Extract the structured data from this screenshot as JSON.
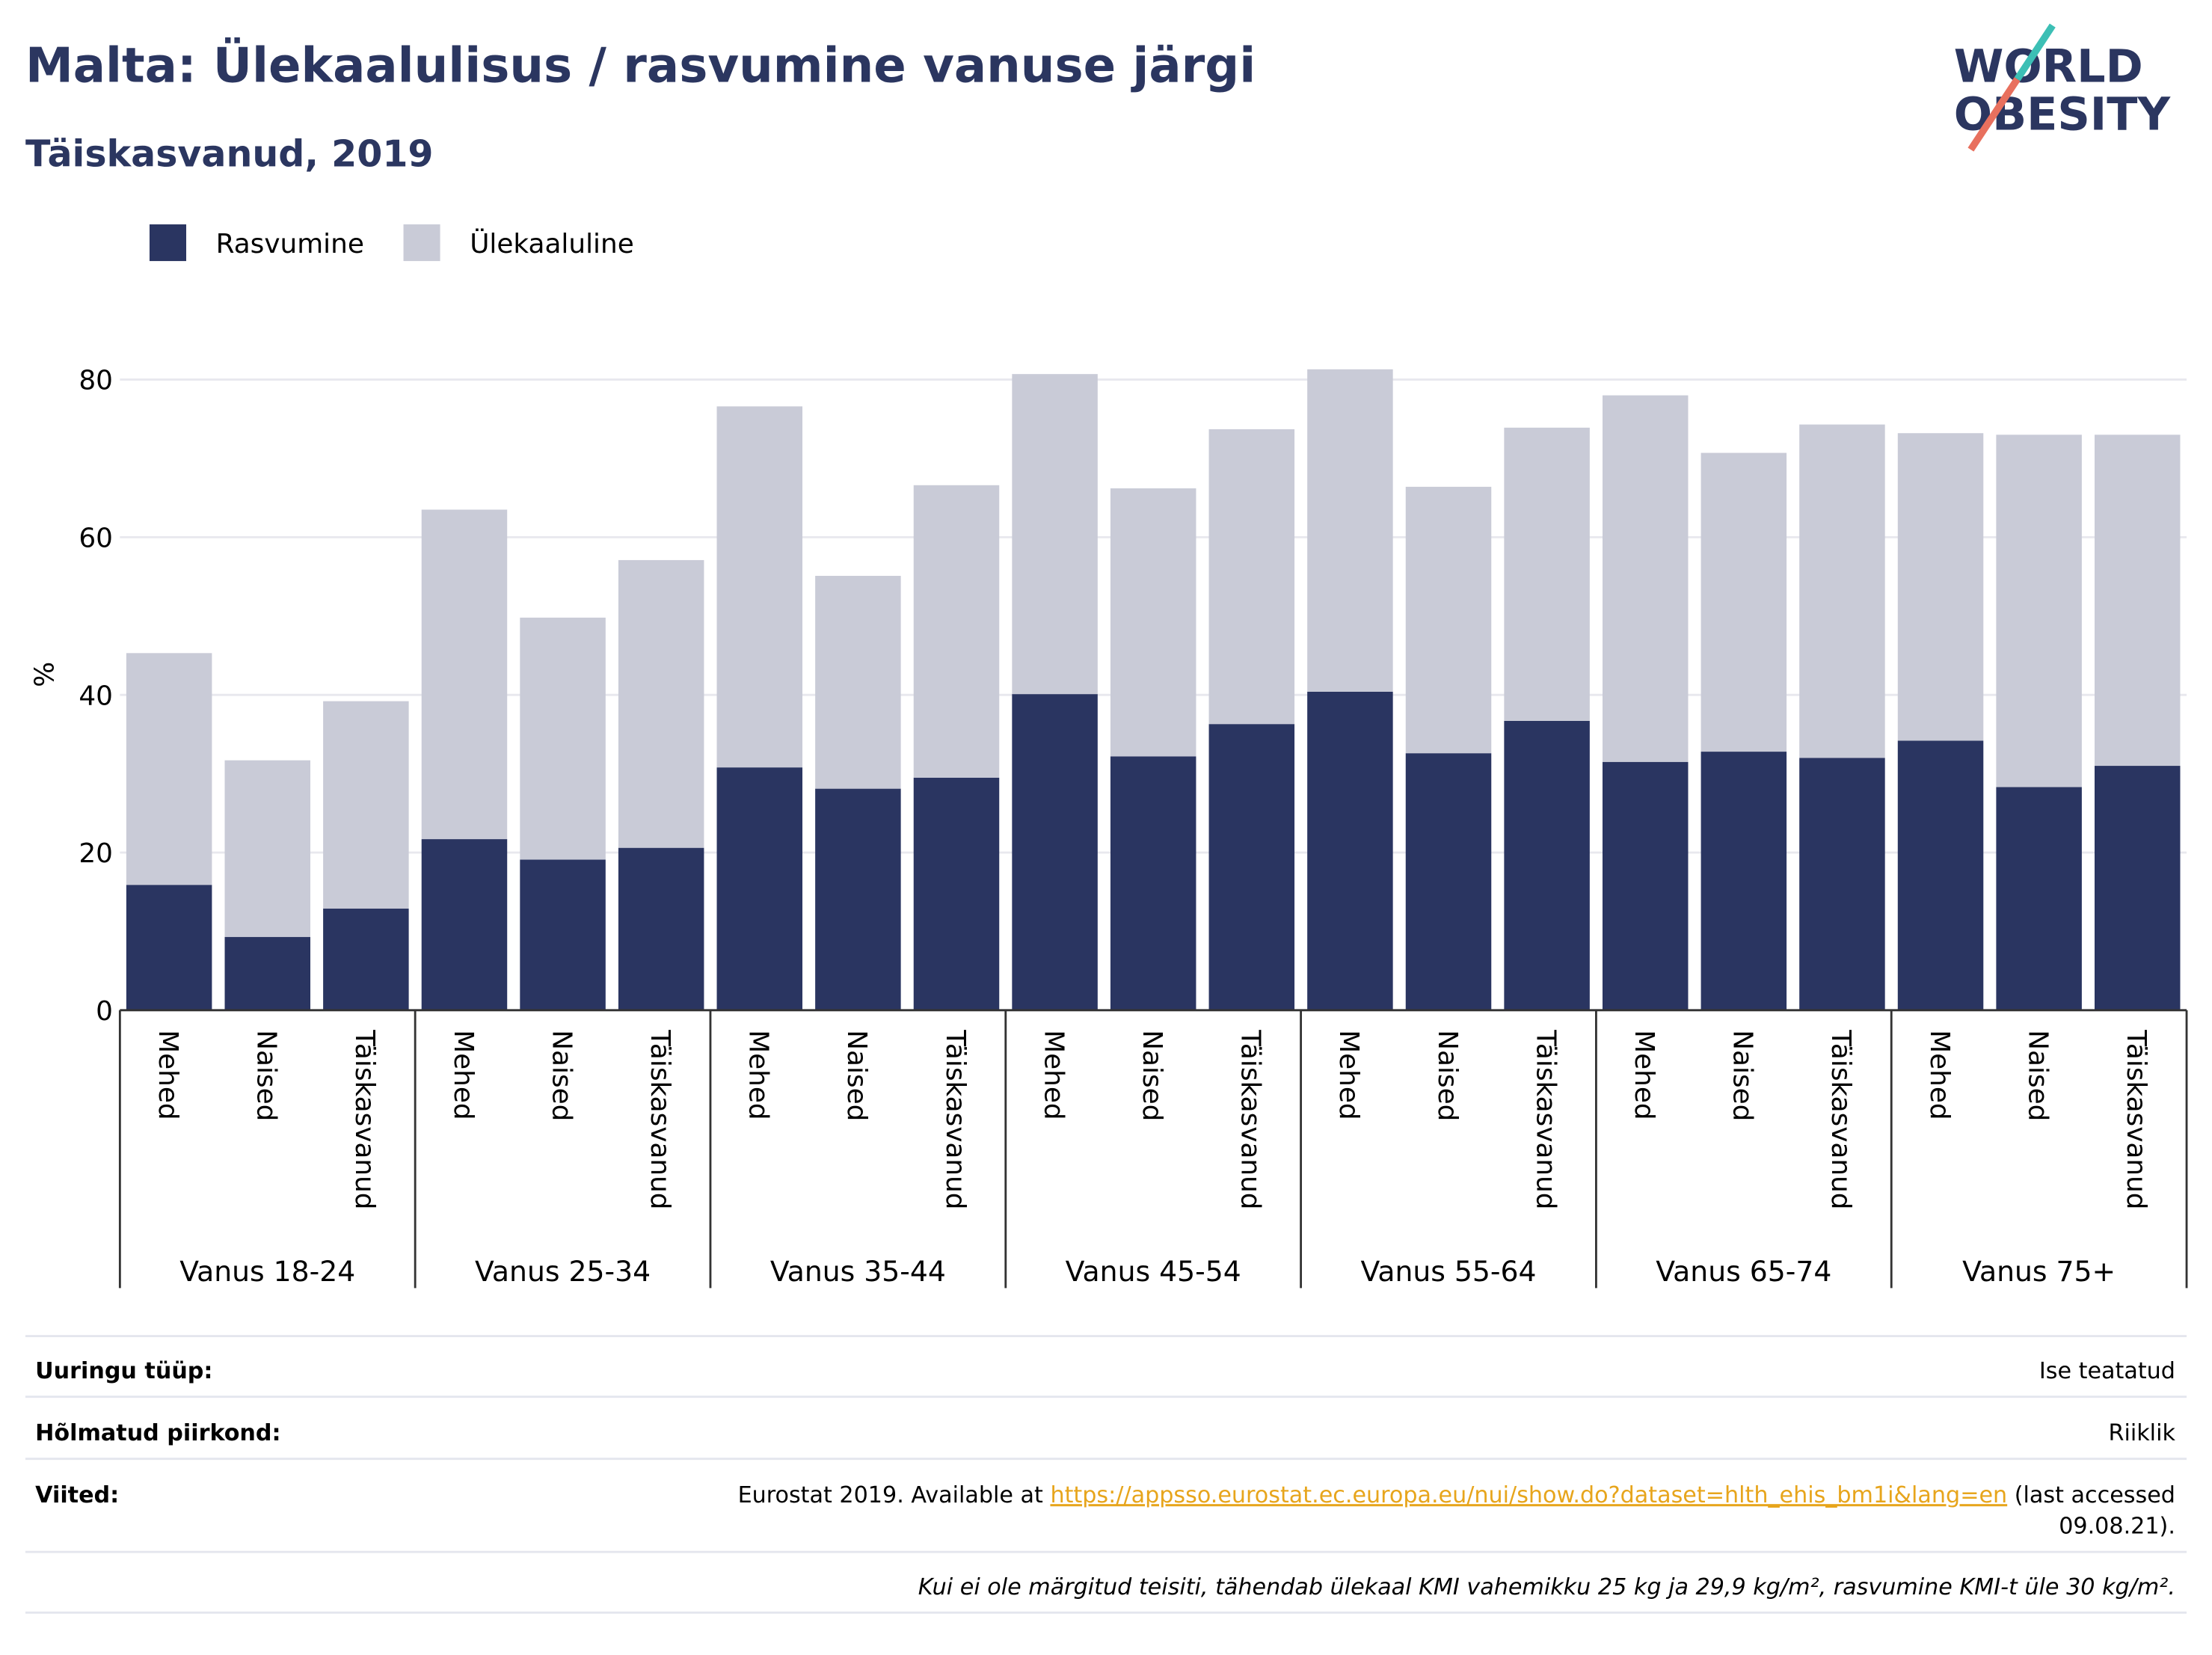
{
  "chart_data": {
    "type": "stacked_bar",
    "title": "Malta: Ülekaalulisus / rasvumine vanuse järgi",
    "subtitle": "Täiskasvanud, 2019",
    "logo": [
      "WORLD",
      "OBESITY"
    ],
    "y_label": "%",
    "groups": [
      "Vanus 18-24",
      "Vanus 25-34",
      "Vanus 35-44",
      "Vanus 45-54",
      "Vanus 55-64",
      "Vanus 65-74",
      "Vanus 75+"
    ],
    "categories": [
      "Mehed",
      "Naised",
      "Täiskasvanud",
      "Mehed",
      "Naised",
      "Täiskasvanud",
      "Mehed",
      "Naised",
      "Täiskasvanud",
      "Mehed",
      "Naised",
      "Täiskasvanud",
      "Mehed",
      "Naised",
      "Täiskasvanud",
      "Mehed",
      "Naised",
      "Täiskasvanud",
      "Mehed",
      "Naised",
      "Täiskasvanud"
    ],
    "series": [
      {
        "name": "Rasvumine",
        "color": "#2a3561",
        "values": [
          15.9,
          9.3,
          12.9,
          21.7,
          19.1,
          20.6,
          30.8,
          28.1,
          29.5,
          40.1,
          32.2,
          36.3,
          40.4,
          32.6,
          36.7,
          31.5,
          32.8,
          32.0,
          34.2,
          28.3,
          31.0
        ]
      },
      {
        "name": "Ülekaaluline",
        "color": "#c9cbd7",
        "values": [
          29.4,
          22.4,
          26.3,
          41.8,
          30.7,
          36.5,
          45.8,
          27.0,
          37.1,
          40.6,
          34.0,
          37.4,
          40.9,
          33.8,
          37.2,
          46.5,
          37.9,
          42.3,
          39.0,
          44.7,
          42.0
        ]
      }
    ],
    "ylim": [
      0,
      80
    ],
    "yticks": [
      0,
      20,
      40,
      60,
      80
    ],
    "grid": true,
    "footer": [
      {
        "label": "Uuringu tüüp:",
        "lines": [
          [
            "Ise teatatud"
          ]
        ]
      },
      {
        "label": "Hõlmatud piirkond:",
        "lines": [
          [
            "Riiklik"
          ]
        ]
      },
      {
        "label": "Viited:",
        "lines": [
          [
            "Eurostat 2019. Available at ",
            "https://appsso.eurostat.ec.europa.eu/nui/show.do?dataset=hlth_ehis_bm1i&lang=en",
            " (last accessed"
          ],
          [
            "09.08.21)."
          ]
        ]
      }
    ],
    "note": "Kui ei ole märgitud teisiti, tähendab ülekaal KMI vahemikku 25 kg ja 29,9 kg/m², rasvumine KMI-t üle 30 kg/m²."
  }
}
